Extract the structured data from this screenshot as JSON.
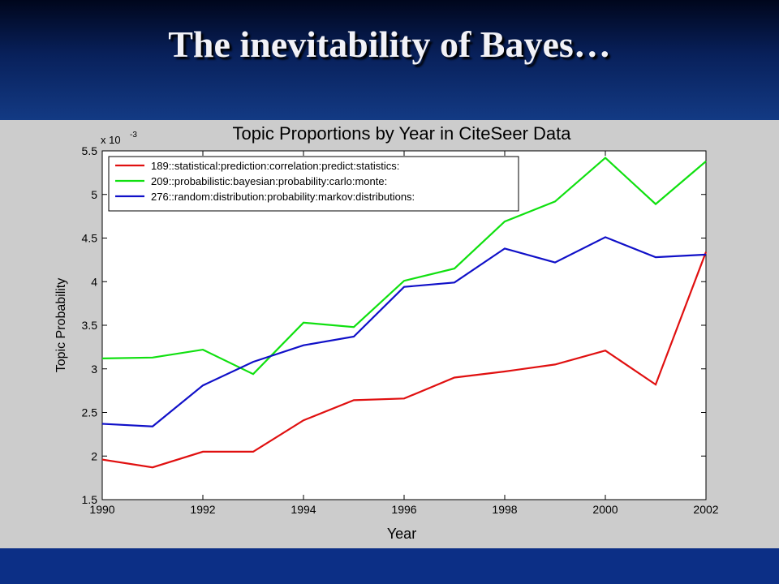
{
  "slide": {
    "title": "The inevitability of Bayes…"
  },
  "chart_data": {
    "type": "line",
    "title": "Topic Proportions by Year in CiteSeer Data",
    "xlabel": "Year",
    "ylabel": "Topic Probability",
    "y_multiplier_label": {
      "base": "x 10",
      "exponent": "-3"
    },
    "xlim": [
      1990,
      2002
    ],
    "ylim": [
      1.5,
      5.5
    ],
    "x_ticks": [
      1990,
      1992,
      1994,
      1996,
      1998,
      2000,
      2002
    ],
    "y_ticks": [
      1.5,
      2,
      2.5,
      3,
      3.5,
      4,
      4.5,
      5,
      5.5
    ],
    "x_tick_labels": [
      "1990",
      "1992",
      "1994",
      "1996",
      "1998",
      "2000",
      "2002"
    ],
    "y_tick_labels": [
      "1.5",
      "2",
      "2.5",
      "3",
      "3.5",
      "4",
      "4.5",
      "5",
      "5.5"
    ],
    "grid": false,
    "legend_position": "top-left",
    "x": [
      1990,
      1991,
      1992,
      1993,
      1994,
      1995,
      1996,
      1997,
      1998,
      1999,
      2000,
      2001,
      2002
    ],
    "series": [
      {
        "name": "189::statistical:prediction:correlation:predict:statistics:",
        "color": "#e01010",
        "values": [
          1.96,
          1.87,
          2.05,
          2.05,
          2.41,
          2.64,
          2.66,
          2.9,
          2.97,
          3.05,
          3.21,
          2.82,
          4.34
        ]
      },
      {
        "name": "209::probabilistic:bayesian:probability:carlo:monte:",
        "color": "#10e010",
        "values": [
          3.12,
          3.13,
          3.22,
          2.94,
          3.53,
          3.48,
          4.01,
          4.15,
          4.69,
          4.92,
          5.42,
          4.89,
          5.38
        ]
      },
      {
        "name": "276::random:distribution:probability:markov:distributions:",
        "color": "#1010c8",
        "values": [
          2.37,
          2.34,
          2.81,
          3.08,
          3.27,
          3.37,
          3.94,
          3.99,
          4.38,
          4.22,
          4.51,
          4.28,
          4.31
        ]
      }
    ]
  }
}
